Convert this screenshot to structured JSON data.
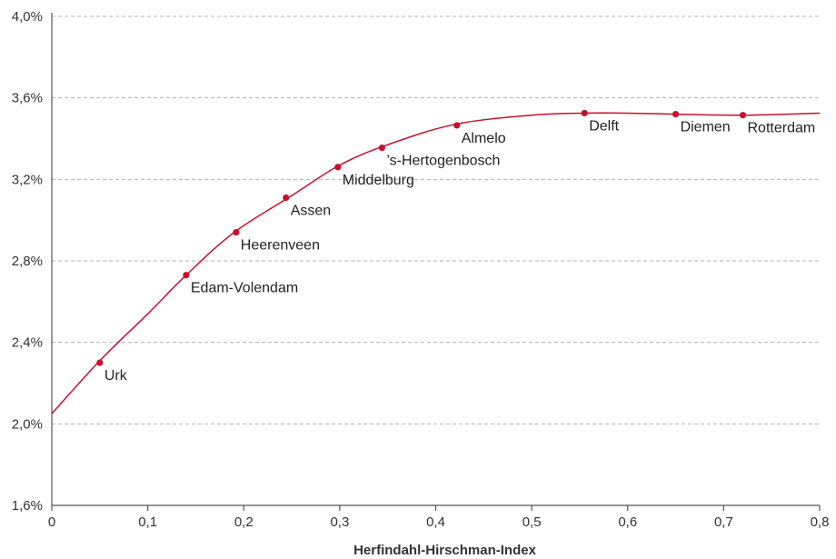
{
  "chart_data": {
    "type": "line",
    "xlabel": "Herfindahl-Hirschman-Index",
    "ylabel": "",
    "xlim": [
      0,
      0.8
    ],
    "ylim": [
      1.6,
      4.0
    ],
    "xticks": [
      0,
      0.1,
      0.2,
      0.3,
      0.4,
      0.5,
      0.6,
      0.7,
      0.8
    ],
    "xtick_labels": [
      "0",
      "0,1",
      "0,2",
      "0,3",
      "0,4",
      "0,5",
      "0,6",
      "0,7",
      "0,8"
    ],
    "yticks": [
      1.6,
      2.0,
      2.4,
      2.8,
      3.2,
      3.6,
      4.0
    ],
    "ytick_labels": [
      "1,6%",
      "2,0%",
      "2,4%",
      "2,8%",
      "3,2%",
      "3,6%",
      "4,0%"
    ],
    "grid": true,
    "color": "#c8102e",
    "curve": {
      "x": [
        0,
        0.05,
        0.1,
        0.14,
        0.19,
        0.25,
        0.3,
        0.35,
        0.42,
        0.5,
        0.555,
        0.6,
        0.65,
        0.72,
        0.8
      ],
      "y": [
        2.05,
        2.31,
        2.54,
        2.73,
        2.94,
        3.12,
        3.27,
        3.37,
        3.47,
        3.515,
        3.525,
        3.525,
        3.52,
        3.515,
        3.525
      ]
    },
    "points": [
      {
        "name": "Urk",
        "x": 0.05,
        "y": 2.3
      },
      {
        "name": "Edam-Volendam",
        "x": 0.14,
        "y": 2.73
      },
      {
        "name": "Heerenveen",
        "x": 0.192,
        "y": 2.94
      },
      {
        "name": "Assen",
        "x": 0.244,
        "y": 3.11
      },
      {
        "name": "Middelburg",
        "x": 0.298,
        "y": 3.26
      },
      {
        "name": "’s-Hertogenbosch",
        "x": 0.344,
        "y": 3.355
      },
      {
        "name": "Almelo",
        "x": 0.422,
        "y": 3.465
      },
      {
        "name": "Delft",
        "x": 0.555,
        "y": 3.525
      },
      {
        "name": "Diemen",
        "x": 0.65,
        "y": 3.52
      },
      {
        "name": "Rotterdam",
        "x": 0.72,
        "y": 3.515
      }
    ]
  }
}
